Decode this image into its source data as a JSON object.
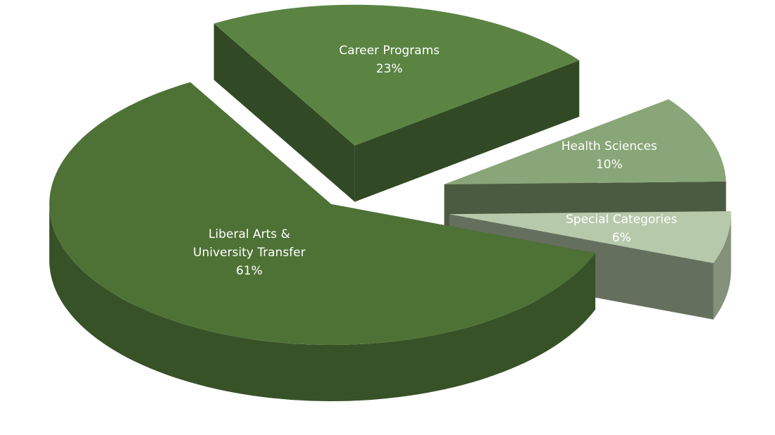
{
  "chart_data": {
    "type": "pie",
    "style": "3d-exploded",
    "categories": [
      "Career Programs",
      "Health Sciences",
      "Special Categories",
      "Liberal Arts & University Transfer"
    ],
    "values": [
      23,
      10,
      6,
      61
    ],
    "value_labels": [
      "23%",
      "10%",
      "6%",
      "61%"
    ],
    "colors": [
      "#5b8443",
      "#88a677",
      "#b7c9ab",
      "#4e7236"
    ]
  }
}
